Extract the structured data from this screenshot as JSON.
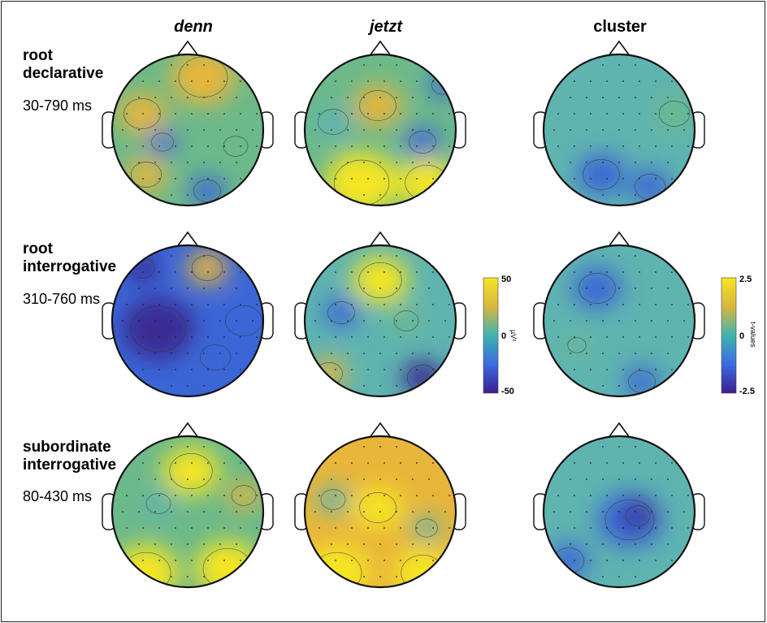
{
  "columns": [
    "denn",
    "jetzt",
    "cluster"
  ],
  "rows": [
    {
      "label_line1": "root",
      "label_line2": "declarative",
      "time": "30-790 ms"
    },
    {
      "label_line1": "root",
      "label_line2": "interrogative",
      "time": "310-760 ms"
    },
    {
      "label_line1": "subordinate",
      "label_line2": "interrogative",
      "time": "80-430 ms"
    }
  ],
  "colorbar_uv": {
    "max": "50",
    "mid": "0",
    "min": "-50",
    "unit": "µV²"
  },
  "colorbar_t": {
    "max": "2.5",
    "mid": "0",
    "min": "-2.5",
    "unit": "t-values"
  },
  "colors": {
    "yellow": "#f6e620",
    "orange": "#e8b63a",
    "green": "#6cb98a",
    "teal": "#5fb4b0",
    "blue": "#3a66d6",
    "navy": "#3b2c93"
  }
}
